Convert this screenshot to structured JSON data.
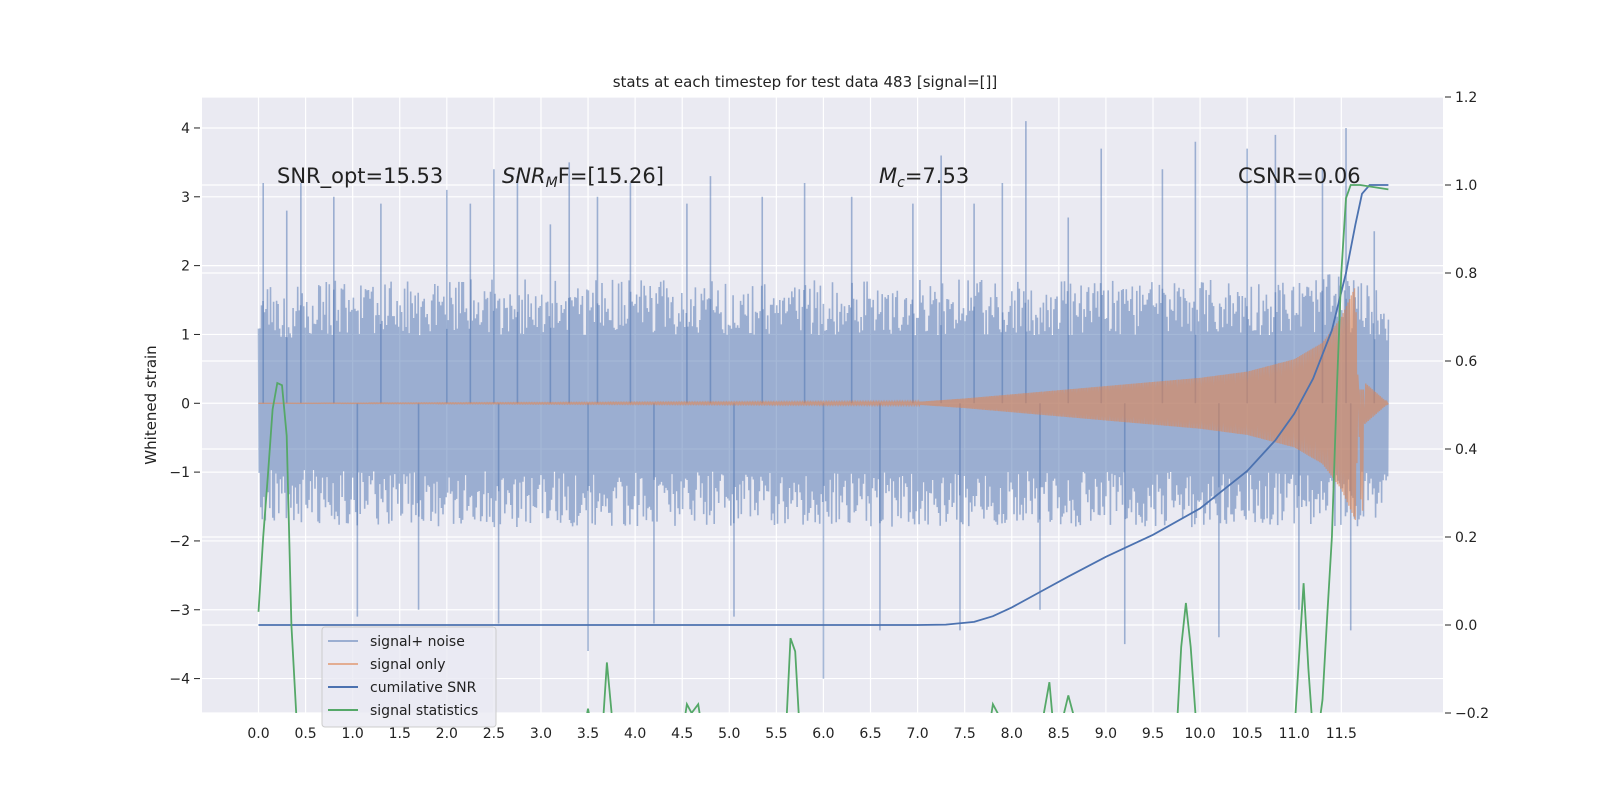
{
  "chart_data": {
    "type": "line",
    "title": "stats at each timestep for test data 483 [signal=[]]",
    "xlabel": "",
    "ylabel": "Whitened strain",
    "y2label": "",
    "xlim": [
      -0.6,
      12.58
    ],
    "ylim": [
      -4.5,
      4.45
    ],
    "y2lim": [
      -0.2,
      1.2
    ],
    "x_ticks": [
      "0.0",
      "0.5",
      "1.0",
      "1.5",
      "2.0",
      "2.5",
      "3.0",
      "3.5",
      "4.0",
      "4.5",
      "5.0",
      "5.5",
      "6.0",
      "6.5",
      "7.0",
      "7.5",
      "8.0",
      "8.5",
      "9.0",
      "9.5",
      "10.0",
      "10.5",
      "11.0",
      "11.5"
    ],
    "y_ticks": [
      -4,
      -3,
      -2,
      -1,
      0,
      1,
      2,
      3,
      4
    ],
    "y_tick_labels": [
      "−4",
      "−3",
      "−2",
      "−1",
      "0",
      "1",
      "2",
      "3",
      "4"
    ],
    "y2_ticks": [
      -0.2,
      0.0,
      0.2,
      0.4,
      0.6,
      0.8,
      1.0,
      1.2
    ],
    "y2_tick_labels": [
      "−0.2",
      "0.0",
      "0.2",
      "0.4",
      "0.6",
      "0.8",
      "1.0",
      "1.2"
    ],
    "grid": true,
    "legend_position": "lower-left",
    "annotations": {
      "snr_opt": "SNR_opt=15.53",
      "snr_mf_main": "SNR",
      "snr_mf_sub": "M",
      "snr_mf_rest": "F=[15.26]",
      "mc_main": "M",
      "mc_sub": "c",
      "mc_rest": "=7.53",
      "csnr": "CSNR=0.06"
    },
    "series": [
      {
        "name": "signal+ noise",
        "color": "#4c72b0",
        "opacity": 0.5,
        "axis": "left",
        "x_range": [
          0.0,
          12.0
        ],
        "envelope_upper": [
          [
            0.0,
            1.7
          ],
          [
            1.0,
            1.8
          ],
          [
            2.0,
            1.8
          ],
          [
            3.0,
            1.8
          ],
          [
            4.0,
            1.8
          ],
          [
            5.0,
            1.8
          ],
          [
            6.0,
            1.8
          ],
          [
            7.0,
            1.8
          ],
          [
            8.0,
            1.8
          ],
          [
            9.0,
            1.8
          ],
          [
            10.0,
            1.8
          ],
          [
            11.0,
            1.8
          ],
          [
            11.5,
            1.9
          ],
          [
            12.0,
            1.6
          ]
        ],
        "envelope_lower": [
          [
            0.0,
            -1.7
          ],
          [
            1.0,
            -1.8
          ],
          [
            2.0,
            -1.8
          ],
          [
            3.0,
            -1.8
          ],
          [
            4.0,
            -1.8
          ],
          [
            5.0,
            -1.8
          ],
          [
            6.0,
            -1.8
          ],
          [
            7.0,
            -1.8
          ],
          [
            8.0,
            -1.8
          ],
          [
            9.0,
            -1.8
          ],
          [
            10.0,
            -1.8
          ],
          [
            11.0,
            -1.8
          ],
          [
            11.5,
            -1.9
          ],
          [
            12.0,
            -1.6
          ]
        ],
        "spikes": [
          [
            0.05,
            3.2
          ],
          [
            0.3,
            2.8
          ],
          [
            0.45,
            3.2
          ],
          [
            0.8,
            3.0
          ],
          [
            1.05,
            -3.1
          ],
          [
            1.3,
            2.9
          ],
          [
            1.7,
            -3.0
          ],
          [
            2.0,
            3.1
          ],
          [
            2.25,
            2.9
          ],
          [
            2.5,
            3.4
          ],
          [
            2.55,
            -3.2
          ],
          [
            2.75,
            3.3
          ],
          [
            3.1,
            2.6
          ],
          [
            3.3,
            3.5
          ],
          [
            3.5,
            -3.6
          ],
          [
            3.6,
            3.0
          ],
          [
            3.95,
            3.2
          ],
          [
            4.2,
            -3.2
          ],
          [
            4.55,
            2.9
          ],
          [
            4.8,
            3.3
          ],
          [
            5.05,
            -3.1
          ],
          [
            5.35,
            3.0
          ],
          [
            5.8,
            3.2
          ],
          [
            6.0,
            -4.0
          ],
          [
            6.3,
            3.0
          ],
          [
            6.6,
            -3.3
          ],
          [
            6.95,
            2.9
          ],
          [
            7.25,
            3.6
          ],
          [
            7.45,
            -3.3
          ],
          [
            7.6,
            2.9
          ],
          [
            7.9,
            3.2
          ],
          [
            8.15,
            4.1
          ],
          [
            8.3,
            -3.0
          ],
          [
            8.6,
            2.7
          ],
          [
            8.95,
            3.7
          ],
          [
            9.2,
            -3.5
          ],
          [
            9.6,
            3.4
          ],
          [
            9.95,
            3.8
          ],
          [
            10.2,
            -3.4
          ],
          [
            10.5,
            3.7
          ],
          [
            10.8,
            3.9
          ],
          [
            11.05,
            -3.0
          ],
          [
            11.3,
            3.4
          ],
          [
            11.55,
            4.0
          ],
          [
            11.6,
            -3.3
          ],
          [
            11.85,
            2.5
          ]
        ]
      },
      {
        "name": "signal only",
        "color": "#dd8452",
        "opacity": 0.6,
        "axis": "left",
        "amplitude": [
          [
            0.0,
            0.0
          ],
          [
            7.0,
            0.02
          ],
          [
            7.5,
            0.07
          ],
          [
            8.0,
            0.13
          ],
          [
            8.5,
            0.19
          ],
          [
            9.0,
            0.25
          ],
          [
            9.5,
            0.31
          ],
          [
            10.0,
            0.37
          ],
          [
            10.5,
            0.46
          ],
          [
            11.0,
            0.64
          ],
          [
            11.3,
            0.88
          ],
          [
            11.5,
            1.25
          ],
          [
            11.65,
            1.7
          ],
          [
            11.72,
            -2.0
          ],
          [
            11.75,
            0.3
          ],
          [
            12.0,
            0.0
          ]
        ]
      },
      {
        "name": "cumilative SNR",
        "color": "#4c72b0",
        "axis": "right",
        "points": [
          [
            0.0,
            0.0
          ],
          [
            7.0,
            0.0
          ],
          [
            7.3,
            0.001
          ],
          [
            7.6,
            0.007
          ],
          [
            7.8,
            0.02
          ],
          [
            8.0,
            0.04
          ],
          [
            8.3,
            0.075
          ],
          [
            8.6,
            0.11
          ],
          [
            9.0,
            0.155
          ],
          [
            9.5,
            0.205
          ],
          [
            10.0,
            0.265
          ],
          [
            10.5,
            0.35
          ],
          [
            10.8,
            0.42
          ],
          [
            11.0,
            0.48
          ],
          [
            11.2,
            0.56
          ],
          [
            11.4,
            0.67
          ],
          [
            11.55,
            0.8
          ],
          [
            11.65,
            0.91
          ],
          [
            11.72,
            0.98
          ],
          [
            11.8,
            1.0
          ],
          [
            12.0,
            1.0
          ]
        ]
      },
      {
        "name": "signal statistics",
        "color": "#55a868",
        "axis": "right",
        "points": [
          [
            0.0,
            0.03
          ],
          [
            0.05,
            0.2
          ],
          [
            0.1,
            0.34
          ],
          [
            0.15,
            0.49
          ],
          [
            0.2,
            0.55
          ],
          [
            0.25,
            0.545
          ],
          [
            0.3,
            0.43
          ],
          [
            0.35,
            0.0
          ],
          [
            0.4,
            -0.2
          ],
          [
            0.42,
            -0.25
          ],
          [
            3.45,
            -0.25
          ],
          [
            3.5,
            -0.19
          ],
          [
            3.55,
            -0.25
          ],
          [
            3.65,
            -0.25
          ],
          [
            3.7,
            -0.085
          ],
          [
            3.75,
            -0.2
          ],
          [
            3.78,
            -0.25
          ],
          [
            4.5,
            -0.25
          ],
          [
            4.55,
            -0.18
          ],
          [
            4.6,
            -0.2
          ],
          [
            4.67,
            -0.18
          ],
          [
            4.72,
            -0.25
          ],
          [
            5.6,
            -0.25
          ],
          [
            5.65,
            -0.03
          ],
          [
            5.7,
            -0.06
          ],
          [
            5.75,
            -0.25
          ],
          [
            7.75,
            -0.25
          ],
          [
            7.8,
            -0.18
          ],
          [
            7.85,
            -0.2
          ],
          [
            7.9,
            -0.25
          ],
          [
            8.3,
            -0.25
          ],
          [
            8.35,
            -0.19
          ],
          [
            8.4,
            -0.13
          ],
          [
            8.45,
            -0.25
          ],
          [
            8.5,
            -0.25
          ],
          [
            8.6,
            -0.16
          ],
          [
            8.65,
            -0.2
          ],
          [
            8.7,
            -0.25
          ],
          [
            9.75,
            -0.25
          ],
          [
            9.8,
            -0.05
          ],
          [
            9.85,
            0.05
          ],
          [
            9.9,
            -0.05
          ],
          [
            9.95,
            -0.2
          ],
          [
            10.0,
            -0.25
          ],
          [
            11.0,
            -0.25
          ],
          [
            11.1,
            0.095
          ],
          [
            11.15,
            -0.1
          ],
          [
            11.2,
            -0.25
          ],
          [
            11.25,
            -0.25
          ],
          [
            11.3,
            -0.17
          ],
          [
            11.35,
            0.02
          ],
          [
            11.4,
            0.2
          ],
          [
            11.45,
            0.52
          ],
          [
            11.5,
            0.8
          ],
          [
            11.55,
            0.97
          ],
          [
            11.6,
            1.0
          ],
          [
            11.7,
            1.0
          ],
          [
            12.0,
            0.99
          ]
        ]
      }
    ]
  }
}
